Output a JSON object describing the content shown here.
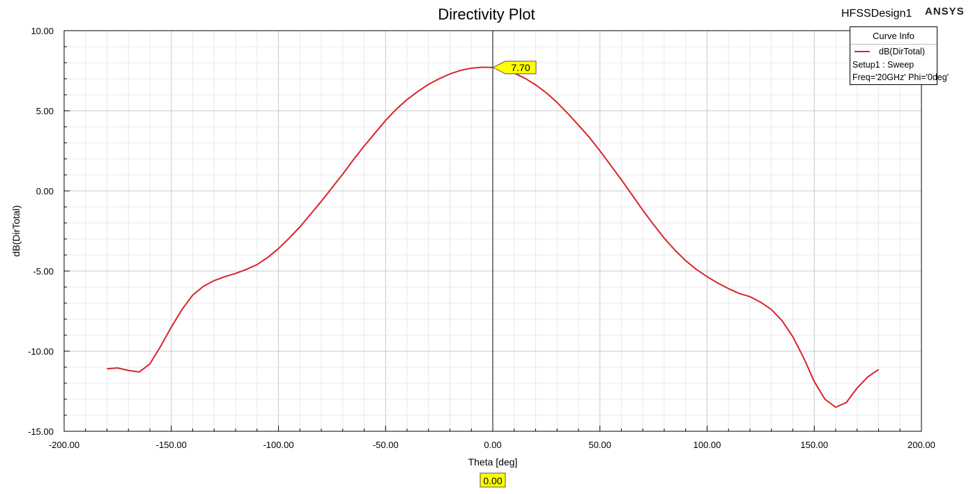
{
  "chart_data": {
    "type": "line",
    "title": "Directivity Plot",
    "xlabel": "Theta [deg]",
    "ylabel": "dB(DirTotal)",
    "xlim": [
      -200,
      200
    ],
    "ylim": [
      -15,
      10
    ],
    "x_ticks": [
      -200,
      -150,
      -100,
      -50,
      0,
      50,
      100,
      150,
      200
    ],
    "x_tick_labels": [
      "-200.00",
      "-150.00",
      "-100.00",
      "-50.00",
      "0.00",
      "50.00",
      "100.00",
      "150.00",
      "200.00"
    ],
    "y_ticks": [
      -15,
      -10,
      -5,
      0,
      5,
      10
    ],
    "y_tick_labels": [
      "-15.00",
      "-10.00",
      "-5.00",
      "0.00",
      "5.00",
      "10.00"
    ],
    "grid": true,
    "legend_position": "top-right",
    "series": [
      {
        "name": "dB(DirTotal)",
        "color": "#d8232a",
        "points": [
          [
            -180,
            -11.1
          ],
          [
            -175,
            -11.05
          ],
          [
            -170,
            -11.2
          ],
          [
            -165,
            -11.3
          ],
          [
            -160,
            -10.8
          ],
          [
            -155,
            -9.7
          ],
          [
            -150,
            -8.5
          ],
          [
            -145,
            -7.4
          ],
          [
            -140,
            -6.5
          ],
          [
            -135,
            -5.95
          ],
          [
            -130,
            -5.6
          ],
          [
            -125,
            -5.35
          ],
          [
            -120,
            -5.15
          ],
          [
            -115,
            -4.9
          ],
          [
            -110,
            -4.6
          ],
          [
            -105,
            -4.15
          ],
          [
            -100,
            -3.6
          ],
          [
            -95,
            -2.95
          ],
          [
            -90,
            -2.25
          ],
          [
            -85,
            -1.45
          ],
          [
            -80,
            -0.65
          ],
          [
            -75,
            0.2
          ],
          [
            -70,
            1.05
          ],
          [
            -65,
            1.95
          ],
          [
            -60,
            2.8
          ],
          [
            -55,
            3.6
          ],
          [
            -50,
            4.4
          ],
          [
            -45,
            5.1
          ],
          [
            -40,
            5.7
          ],
          [
            -35,
            6.2
          ],
          [
            -30,
            6.65
          ],
          [
            -25,
            7.0
          ],
          [
            -20,
            7.3
          ],
          [
            -15,
            7.52
          ],
          [
            -10,
            7.66
          ],
          [
            -5,
            7.72
          ],
          [
            0,
            7.7
          ],
          [
            5,
            7.58
          ],
          [
            10,
            7.35
          ],
          [
            15,
            7.03
          ],
          [
            20,
            6.62
          ],
          [
            25,
            6.12
          ],
          [
            30,
            5.52
          ],
          [
            35,
            4.83
          ],
          [
            40,
            4.1
          ],
          [
            45,
            3.35
          ],
          [
            50,
            2.5
          ],
          [
            55,
            1.6
          ],
          [
            60,
            0.7
          ],
          [
            65,
            -0.25
          ],
          [
            70,
            -1.2
          ],
          [
            75,
            -2.1
          ],
          [
            80,
            -2.95
          ],
          [
            85,
            -3.7
          ],
          [
            90,
            -4.35
          ],
          [
            95,
            -4.9
          ],
          [
            100,
            -5.35
          ],
          [
            105,
            -5.75
          ],
          [
            110,
            -6.1
          ],
          [
            115,
            -6.4
          ],
          [
            120,
            -6.6
          ],
          [
            125,
            -6.95
          ],
          [
            130,
            -7.4
          ],
          [
            135,
            -8.1
          ],
          [
            140,
            -9.1
          ],
          [
            145,
            -10.4
          ],
          [
            150,
            -11.9
          ],
          [
            155,
            -13.0
          ],
          [
            160,
            -13.5
          ],
          [
            165,
            -13.2
          ],
          [
            170,
            -12.3
          ],
          [
            175,
            -11.6
          ],
          [
            180,
            -11.15
          ]
        ]
      }
    ],
    "marker": {
      "x": 0,
      "y": 7.7,
      "y_label": "7.70",
      "x_label": "0.00"
    }
  },
  "header": {
    "design_name": "HFSSDesign1",
    "brand": "ANSYS"
  },
  "legend": {
    "title": "Curve Info",
    "series_label": "dB(DirTotal)",
    "line2": "Setup1 : Sweep",
    "line3": "Freq='20GHz' Phi='0deg'"
  }
}
